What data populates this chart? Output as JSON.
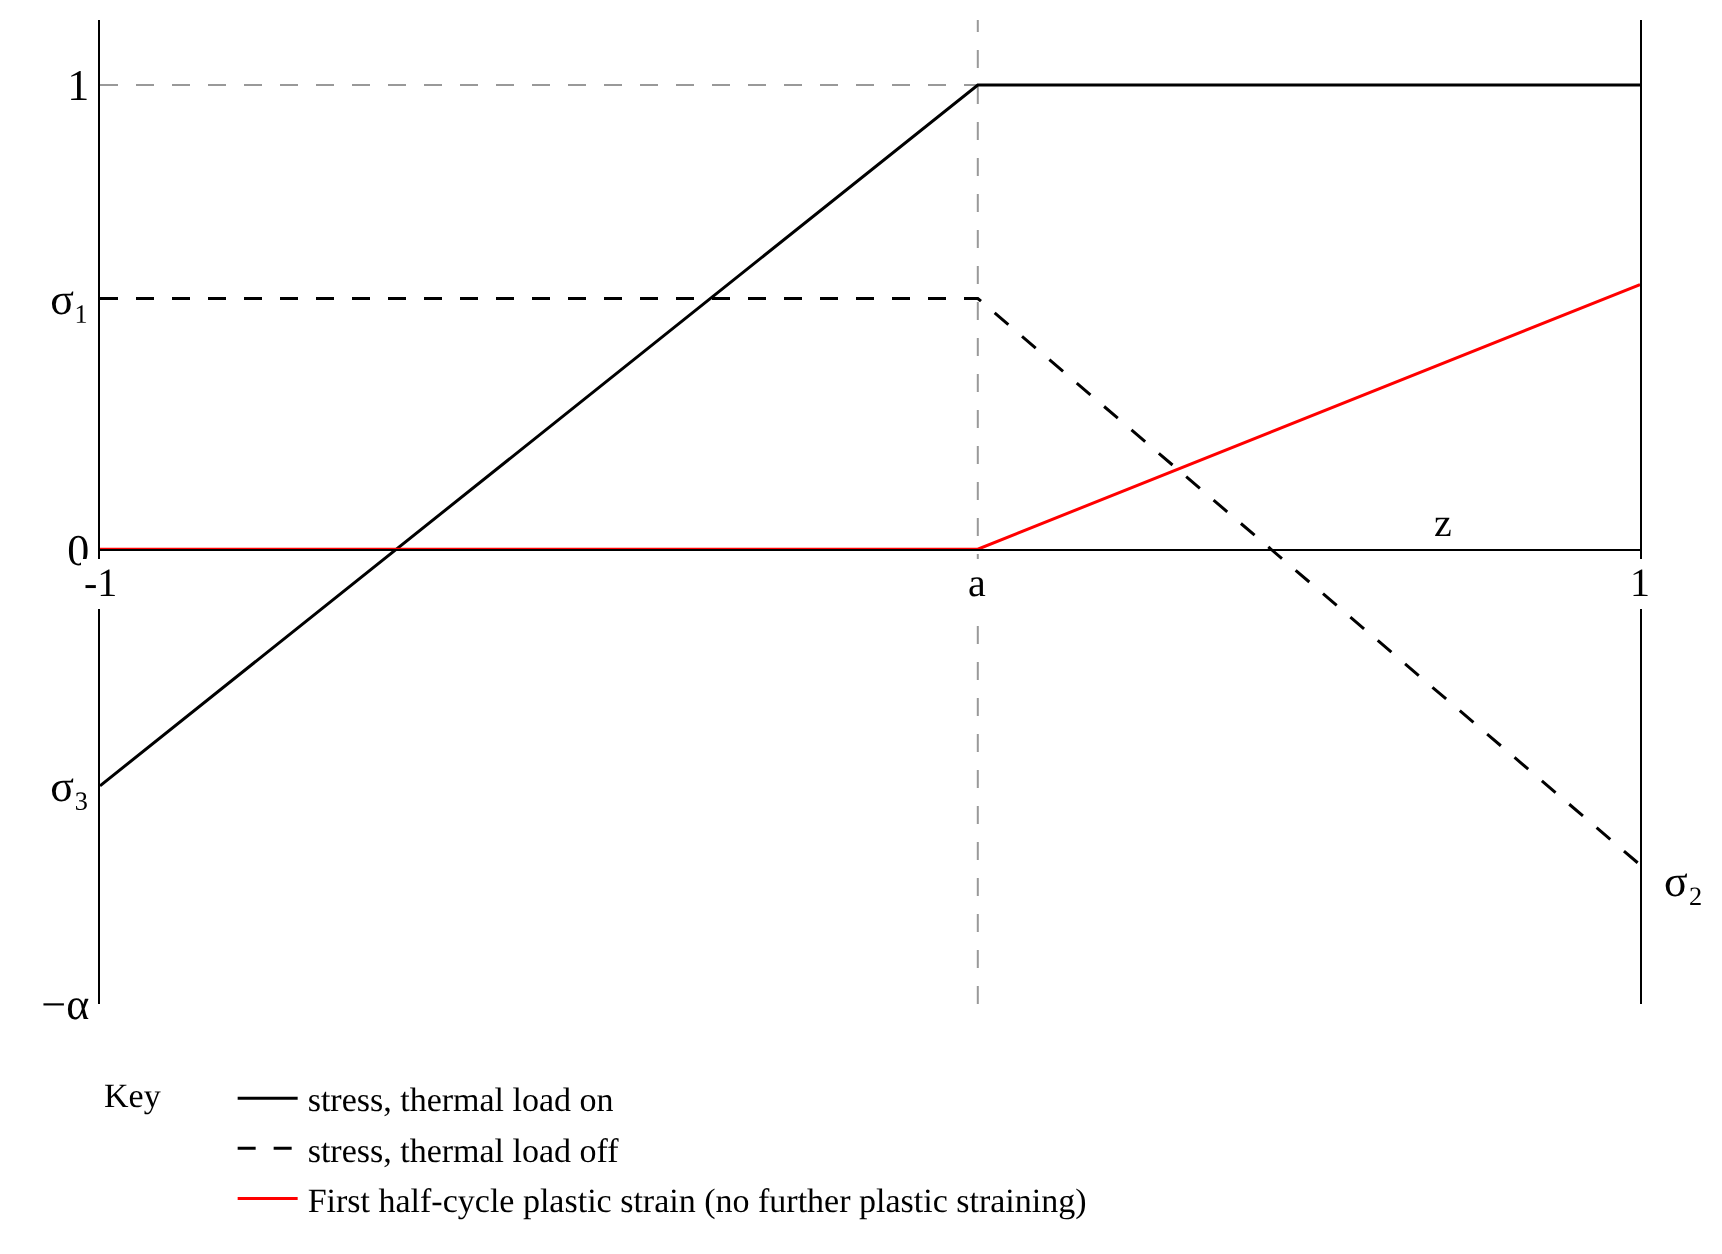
{
  "chart_data": {
    "type": "line",
    "x": [
      -1,
      0.14,
      1
    ],
    "series": [
      {
        "name": "stress, thermal load on",
        "color": "#000000",
        "line_style": "solid",
        "values": [
          -0.51,
          1,
          1
        ]
      },
      {
        "name": "stress, thermal load off",
        "color": "#000000",
        "line_style": "dashed",
        "values": [
          0.54,
          0.54,
          -0.68
        ]
      },
      {
        "name": "First half-cycle plastic strain (no further plastic straining)",
        "color": "#ff0000",
        "line_style": "solid",
        "values": [
          0,
          0,
          0.57
        ]
      }
    ],
    "xlim": [
      -1,
      1
    ],
    "xticks": [
      -1,
      {
        "value": 0.14,
        "label": "a"
      },
      1
    ],
    "ylim": [
      -0.98,
      1.14
    ],
    "yticks": [
      1,
      {
        "value": 0.54,
        "label": "σ₁"
      },
      0,
      {
        "value": -0.51,
        "label": "σ₃"
      },
      {
        "value": -0.98,
        "label": "−α"
      }
    ],
    "xlabel": "z",
    "annotations": [
      {
        "text": "σ₂",
        "x": 1,
        "y": -0.68
      }
    ],
    "ref_lines": [
      {
        "axis": "y",
        "value": 1,
        "color": "#999999",
        "line_style": "dashed"
      },
      {
        "axis": "x",
        "value": 0.14,
        "color": "#999999",
        "line_style": "dashed"
      }
    ],
    "legend_title": "Key",
    "legend": "bottom",
    "grid": false,
    "marker": "none"
  }
}
